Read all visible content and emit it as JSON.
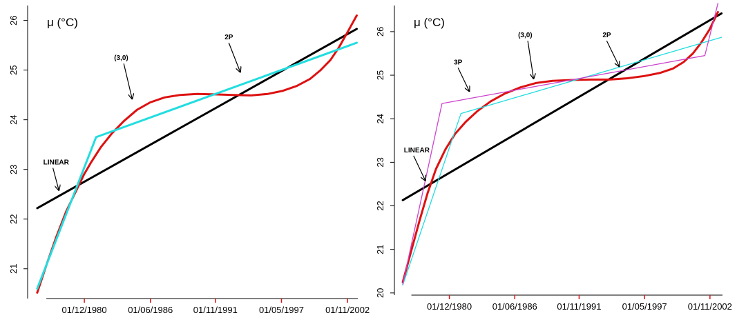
{
  "chart_data": [
    {
      "type": "line",
      "title": "",
      "ylabel": "μ (°C)",
      "xlabel": "",
      "x_ticks": [
        "01/12/1980",
        "01/06/1986",
        "01/11/1991",
        "01/05/1997",
        "01/11/2002"
      ],
      "x_tick_values": [
        1980.92,
        1986.42,
        1991.83,
        1997.33,
        2002.83
      ],
      "y_ticks": [
        21,
        22,
        23,
        24,
        25,
        26
      ],
      "xlim": [
        1976.2,
        2003.8
      ],
      "ylim": [
        20.4,
        26.3
      ],
      "grid": false,
      "legend": "none",
      "series": [
        {
          "color": "#000000",
          "width": 3,
          "x": [
            1977.0,
            2003.6
          ],
          "y": [
            22.22,
            25.83
          ]
        },
        {
          "color": "#dd1111",
          "width": 3,
          "x": [
            1977.0,
            1977.8,
            1978.6,
            1979.4,
            1980.2,
            1980.9,
            1981.5,
            1982.3,
            1983.2,
            1984.2,
            1985.3,
            1986.4,
            1987.6,
            1988.9,
            1990.3,
            1991.8,
            1993.3,
            1994.8,
            1996.2,
            1997.4,
            1998.6,
            1999.7,
            2000.6,
            2001.4,
            2002.1,
            2002.8,
            2003.6
          ],
          "y": [
            20.52,
            21.1,
            21.65,
            22.15,
            22.55,
            22.9,
            23.15,
            23.45,
            23.72,
            23.97,
            24.2,
            24.35,
            24.45,
            24.5,
            24.52,
            24.51,
            24.5,
            24.49,
            24.52,
            24.58,
            24.68,
            24.82,
            25.0,
            25.2,
            25.45,
            25.75,
            26.1
          ]
        },
        {
          "color": "#22dde0",
          "width": 3,
          "x": [
            1977.0,
            1981.9,
            2003.6
          ],
          "y": [
            20.6,
            23.65,
            25.55
          ]
        }
      ],
      "annotations": [
        {
          "text": "LINEAR",
          "x": 1977.5,
          "y": 23.1,
          "arrow_to_x": 1978.8,
          "arrow_to_y": 22.58
        },
        {
          "text": "(3,0)",
          "x": 1983.4,
          "y": 25.2,
          "arrow_to_x": 1984.9,
          "arrow_to_y": 24.42
        },
        {
          "text": "2P",
          "x": 1992.6,
          "y": 25.62,
          "arrow_to_x": 1993.9,
          "arrow_to_y": 24.96
        }
      ]
    },
    {
      "type": "line",
      "title": "",
      "ylabel": "μ (°C)",
      "xlabel": "",
      "x_ticks": [
        "01/12/1980",
        "01/06/1986",
        "01/11/1991",
        "01/05/1997",
        "01/11/2002"
      ],
      "x_tick_values": [
        1980.92,
        1986.42,
        1991.83,
        1997.33,
        2002.83
      ],
      "y_ticks": [
        20,
        21,
        22,
        23,
        24,
        25,
        26
      ],
      "xlim": [
        1976.3,
        2004.0
      ],
      "ylim": [
        19.95,
        26.6
      ],
      "grid": false,
      "legend": "none",
      "series": [
        {
          "color": "#000000",
          "width": 3,
          "x": [
            1977.0,
            2003.8
          ],
          "y": [
            22.13,
            26.42
          ]
        },
        {
          "color": "#dd1111",
          "width": 3,
          "x": [
            1977.0,
            1977.7,
            1978.4,
            1979.1,
            1979.8,
            1980.6,
            1981.4,
            1982.3,
            1983.3,
            1984.4,
            1985.6,
            1986.9,
            1988.2,
            1989.6,
            1991.2,
            1992.8,
            1994.4,
            1995.9,
            1997.3,
            1998.6,
            1999.7,
            2000.6,
            2001.4,
            2002.1,
            2002.8,
            2003.5
          ],
          "y": [
            20.25,
            20.95,
            21.65,
            22.3,
            22.85,
            23.3,
            23.65,
            23.93,
            24.18,
            24.4,
            24.58,
            24.72,
            24.82,
            24.87,
            24.89,
            24.9,
            24.9,
            24.93,
            24.98,
            25.05,
            25.15,
            25.3,
            25.5,
            25.75,
            26.05,
            26.45
          ]
        },
        {
          "color": "#22dde0",
          "width": 1.3,
          "x": [
            1977.0,
            1981.9,
            2003.8
          ],
          "y": [
            20.18,
            24.12,
            25.87
          ]
        },
        {
          "color": "#cc44cc",
          "width": 1.3,
          "x": [
            1977.0,
            1980.3,
            2002.4,
            2003.5
          ],
          "y": [
            20.2,
            24.35,
            25.45,
            26.65
          ]
        }
      ],
      "annotations": [
        {
          "text": "LINEAR",
          "x": 1977.1,
          "y": 23.23,
          "arrow_to_x": 1978.9,
          "arrow_to_y": 22.58
        },
        {
          "text": "3P",
          "x": 1981.3,
          "y": 25.25,
          "arrow_to_x": 1982.6,
          "arrow_to_y": 24.63
        },
        {
          "text": "(3,0)",
          "x": 1986.7,
          "y": 25.87,
          "arrow_to_x": 1988.0,
          "arrow_to_y": 24.92
        },
        {
          "text": "2P",
          "x": 1993.8,
          "y": 25.87,
          "arrow_to_x": 1995.2,
          "arrow_to_y": 25.2
        }
      ]
    }
  ]
}
